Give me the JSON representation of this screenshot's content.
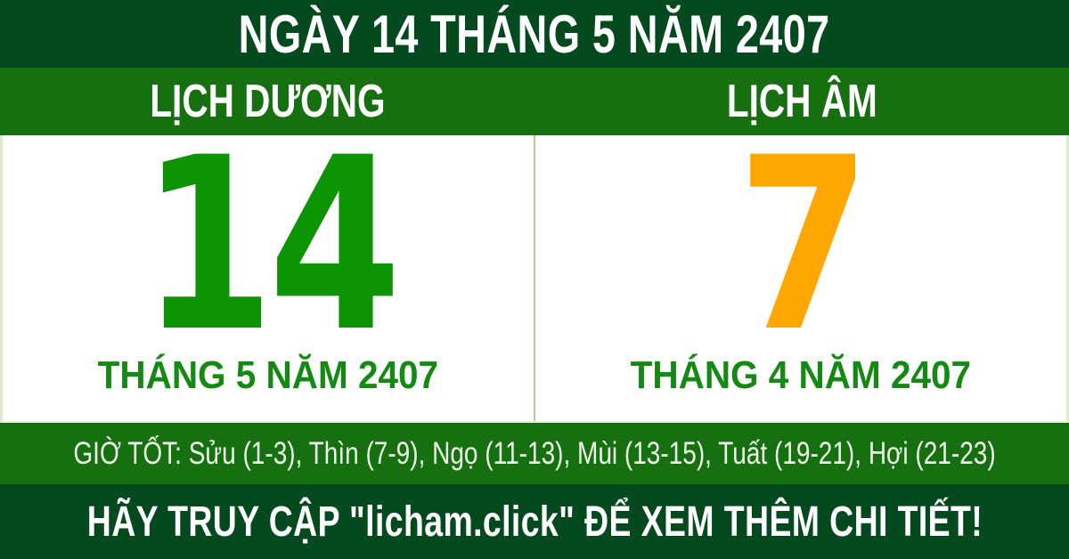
{
  "colors": {
    "dark_green": "#05491f",
    "green": "#16700f",
    "day_green": "#0d9405",
    "orange": "#ffa600",
    "month_green": "#148a14",
    "divider_green": "#a9cf92",
    "edge_border": "#dcebc8",
    "text_light": "#eef6ea",
    "white": "#ffffff"
  },
  "header": {
    "title": "NGÀY 14 THÁNG 5 NĂM 2407"
  },
  "solar": {
    "heading": "LỊCH DƯƠNG",
    "day": "14",
    "month_year": "THÁNG 5 NĂM 2407"
  },
  "lunar": {
    "heading": "LỊCH ÂM",
    "day": "7",
    "month_year": "THÁNG 4 NĂM 2407"
  },
  "good_hours": {
    "label": "GIỜ TỐT:",
    "hours": "Sửu (1-3), Thìn (7-9), Ngọ (11-13), Mùi (13-15), Tuất (19-21), Hợi (21-23)"
  },
  "footer": {
    "text": "HÃY TRUY CẬP \"licham.click\" ĐỂ XEM THÊM CHI TIẾT!"
  }
}
